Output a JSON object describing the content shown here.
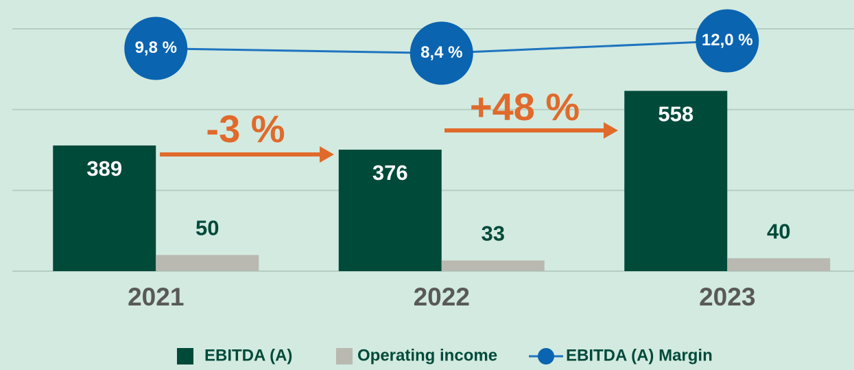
{
  "chart_data": {
    "type": "bar_line",
    "categories": [
      "2021",
      "2022",
      "2023"
    ],
    "series": [
      {
        "name": "EBITDA (A)",
        "color": "#004a3a",
        "type": "bar",
        "values": [
          389,
          376,
          558
        ]
      },
      {
        "name": "Operating income",
        "color": "#b9b9b1",
        "type": "bar",
        "values": [
          50,
          33,
          40
        ]
      },
      {
        "name": "EBITDA (A) Margin",
        "color": "#1e74c0",
        "type": "line",
        "axis": "y2",
        "values": [
          9.8,
          8.4,
          12.0
        ],
        "value_labels": [
          "9,8 %",
          "8,4 %",
          "12,0 %"
        ]
      }
    ],
    "annotations": [
      "-3 %",
      "+48 %"
    ],
    "ylim": [
      0,
      750
    ],
    "yticks": [
      0,
      250,
      500,
      750
    ],
    "y2lim": [
      -55,
      15.5
    ],
    "grid": true,
    "legend": "bottom"
  }
}
